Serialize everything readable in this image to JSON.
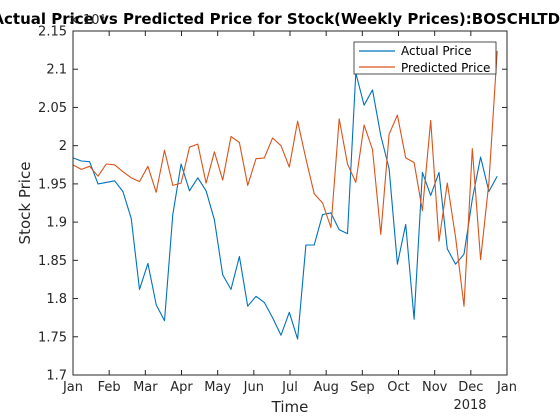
{
  "chart_data": {
    "type": "line",
    "title": "Actual Price vs Predicted Price for Stock(Weekly Prices):BOSCHLTD_",
    "xlabel": "Time",
    "ylabel": "Stock Price",
    "y_multiplier_label": "× 10⁴",
    "xlim": [
      0,
      12
    ],
    "ylim": [
      1.7,
      2.15
    ],
    "x_tick_labels": [
      "Jan",
      "Feb",
      "Mar",
      "Apr",
      "May",
      "Jun",
      "Jul",
      "Aug",
      "Sep",
      "Oct",
      "Nov",
      "Dec",
      "Jan"
    ],
    "x_year_label": "2018",
    "y_ticks": [
      1.7,
      1.75,
      1.8,
      1.85,
      1.9,
      1.95,
      2.0,
      2.05,
      2.1,
      2.15
    ],
    "y_tick_labels": [
      "1.7",
      "1.75",
      "1.8",
      "1.85",
      "1.9",
      "1.95",
      "2",
      "2.05",
      "2.1",
      "2.15"
    ],
    "grid": false,
    "legend_position": "top-right",
    "x": [
      0.0,
      0.23,
      0.46,
      0.69,
      0.92,
      1.15,
      1.38,
      1.61,
      1.84,
      2.07,
      2.3,
      2.53,
      2.76,
      2.99,
      3.22,
      3.45,
      3.68,
      3.91,
      4.14,
      4.37,
      4.6,
      4.83,
      5.06,
      5.29,
      5.52,
      5.75,
      5.98,
      6.21,
      6.44,
      6.67,
      6.9,
      7.13,
      7.36,
      7.59,
      7.82,
      8.05,
      8.28,
      8.51,
      8.74,
      8.97,
      9.2,
      9.43,
      9.66,
      9.89,
      10.12,
      10.35,
      10.58,
      10.81,
      11.04,
      11.27,
      11.5,
      11.73
    ],
    "series": [
      {
        "name": "Actual Price",
        "color": "#0072BD",
        "values": [
          1.984,
          1.98,
          1.979,
          1.95,
          1.952,
          1.954,
          1.94,
          1.905,
          1.812,
          1.846,
          1.792,
          1.771,
          1.91,
          1.976,
          1.941,
          1.958,
          1.941,
          1.903,
          1.831,
          1.812,
          1.855,
          1.79,
          1.803,
          1.795,
          1.775,
          1.752,
          1.782,
          1.747,
          1.87,
          1.87,
          1.91,
          1.912,
          1.89,
          1.885,
          2.095,
          2.053,
          2.073,
          2.013,
          1.97,
          1.845,
          1.897,
          1.773,
          1.965,
          1.935,
          1.965,
          1.865,
          1.845,
          1.858,
          1.93,
          1.985,
          1.94,
          1.96
        ]
      },
      {
        "name": "Predicted Price",
        "color": "#D95319",
        "values": [
          1.975,
          1.969,
          1.973,
          1.96,
          1.976,
          1.975,
          1.966,
          1.958,
          1.953,
          1.973,
          1.939,
          1.994,
          1.948,
          1.951,
          1.998,
          2.002,
          1.951,
          1.992,
          1.955,
          2.012,
          2.004,
          1.948,
          1.983,
          1.984,
          2.01,
          2.0,
          1.972,
          2.032,
          1.983,
          1.937,
          1.925,
          1.893,
          2.035,
          1.976,
          1.952,
          2.027,
          1.995,
          1.884,
          2.015,
          2.04,
          1.984,
          1.978,
          1.915,
          2.033,
          1.875,
          1.951,
          1.88,
          1.79,
          1.996,
          1.851,
          1.952,
          2.124
        ]
      }
    ]
  }
}
